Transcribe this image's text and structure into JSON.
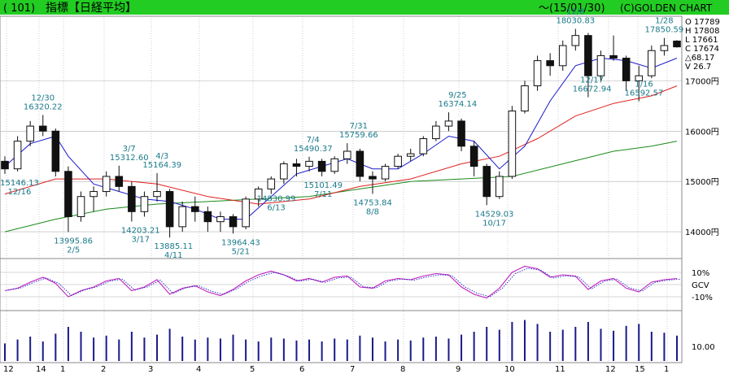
{
  "header": {
    "code": "( 101)",
    "name": "指標【日経平均】",
    "period": "～(15/01/30)",
    "brand": "(C)GOLDEN CHART"
  },
  "colors": {
    "header_bg": "#22cc22",
    "candle": "#111111",
    "ma_short": "#1a1acc",
    "ma_mid": "#e02020",
    "ma_long": "#1a8a1a",
    "ind_line": "#c020c0",
    "ind_dot": "#2020c0",
    "price_label": "#1a7a8a",
    "grid": "#b0b0b0",
    "volume": "#1a1a8a"
  },
  "ohlc_box": {
    "O": "O 17789",
    "H": "H 17808",
    "L": "L 17661",
    "C": "C 17674",
    "D": "△68.17",
    "V": "V 26.7"
  },
  "chart_data": {
    "type": "candlestick",
    "x_ticks": [
      "12",
      "14",
      "1",
      "2",
      "3",
      "4",
      "5",
      "6",
      "7",
      "8",
      "9",
      "10",
      "11",
      "12",
      "15",
      "1"
    ],
    "price_axis": {
      "ticks": [
        17000,
        16000,
        15000,
        14000
      ],
      "tick_labels": [
        "17000円",
        "16000円",
        "15000円",
        "14000円"
      ],
      "range": [
        13500,
        18250
      ]
    },
    "indicator_axis": {
      "tick_labels": [
        "10%",
        "GCV",
        "-10%"
      ],
      "range": [
        -20,
        20
      ]
    },
    "volume_axis": {
      "tick_labels": [
        "10.00"
      ]
    },
    "annotations": [
      {
        "date": "12/30",
        "value": "16320.22",
        "x": 3.0,
        "y": 16320
      },
      {
        "date": "12/16",
        "value": "15146.13",
        "x": 0.3,
        "y": 15146
      },
      {
        "date": "2/5",
        "value": "13995.86",
        "x": 5.4,
        "y": 13996
      },
      {
        "date": "3/7",
        "value": "15312.60",
        "x": 9.8,
        "y": 15313
      },
      {
        "date": "3/17",
        "value": "14203.21",
        "x": 10.7,
        "y": 14203
      },
      {
        "date": "4/3",
        "value": "15164.39",
        "x": 12.4,
        "y": 15164
      },
      {
        "date": "4/11",
        "value": "13885.11",
        "x": 13.3,
        "y": 13885
      },
      {
        "date": "5/21",
        "value": "13964.43",
        "x": 18.6,
        "y": 13964
      },
      {
        "date": "6/13",
        "value": "14830.99",
        "x": 21.4,
        "y": 14831
      },
      {
        "date": "7/4",
        "value": "15490.37",
        "x": 24.3,
        "y": 15490
      },
      {
        "date": "7/11",
        "value": "15101.49",
        "x": 25.1,
        "y": 15101
      },
      {
        "date": "7/31",
        "value": "15759.66",
        "x": 27.9,
        "y": 15760
      },
      {
        "date": "8/8",
        "value": "14753.84",
        "x": 29.0,
        "y": 14754
      },
      {
        "date": "9/25",
        "value": "16374.14",
        "x": 35.7,
        "y": 16374
      },
      {
        "date": "10/17",
        "value": "14529.03",
        "x": 38.6,
        "y": 14529
      },
      {
        "date": "12/8",
        "value": "18030.83",
        "x": 45.0,
        "y": 18031
      },
      {
        "date": "12/17",
        "value": "16672.94",
        "x": 46.3,
        "y": 16673
      },
      {
        "date": "1/16",
        "value": "16592.57",
        "x": 50.4,
        "y": 16593
      },
      {
        "date": "1/28",
        "value": "17850.59",
        "x": 52.0,
        "y": 17851
      }
    ],
    "candles_weekly_approx": [
      [
        0.0,
        15400,
        15500,
        15150,
        15250
      ],
      [
        1.0,
        15250,
        15900,
        15200,
        15800
      ],
      [
        2.0,
        15800,
        16200,
        15700,
        16100
      ],
      [
        3.0,
        16100,
        16320,
        15900,
        16000
      ],
      [
        4.0,
        16000,
        16050,
        15100,
        15200
      ],
      [
        5.0,
        15200,
        15300,
        13996,
        14300
      ],
      [
        6.0,
        14300,
        14800,
        14200,
        14700
      ],
      [
        7.0,
        14700,
        14900,
        14400,
        14800
      ],
      [
        8.0,
        14800,
        15200,
        14700,
        15100
      ],
      [
        9.0,
        15100,
        15313,
        14800,
        14900
      ],
      [
        10.0,
        14900,
        15000,
        14203,
        14400
      ],
      [
        11.0,
        14400,
        14800,
        14300,
        14700
      ],
      [
        12.0,
        14700,
        15164,
        14600,
        14800
      ],
      [
        13.0,
        14800,
        14850,
        13885,
        14100
      ],
      [
        14.0,
        14100,
        14600,
        14000,
        14500
      ],
      [
        15.0,
        14500,
        14700,
        14200,
        14400
      ],
      [
        16.0,
        14400,
        14500,
        14000,
        14200
      ],
      [
        17.0,
        14200,
        14400,
        14000,
        14300
      ],
      [
        18.0,
        14300,
        14350,
        13964,
        14100
      ],
      [
        19.0,
        14100,
        14700,
        14050,
        14650
      ],
      [
        20.0,
        14650,
        14900,
        14500,
        14850
      ],
      [
        21.0,
        14850,
        15100,
        14750,
        15050
      ],
      [
        22.0,
        15050,
        15400,
        14950,
        15350
      ],
      [
        23.0,
        15350,
        15450,
        15100,
        15300
      ],
      [
        24.0,
        15300,
        15490,
        15200,
        15400
      ],
      [
        25.0,
        15400,
        15450,
        15101,
        15200
      ],
      [
        26.0,
        15200,
        15500,
        15150,
        15450
      ],
      [
        27.0,
        15450,
        15760,
        15350,
        15600
      ],
      [
        28.0,
        15600,
        15650,
        15000,
        15100
      ],
      [
        29.0,
        15100,
        15200,
        14754,
        15050
      ],
      [
        30.0,
        15050,
        15350,
        15000,
        15300
      ],
      [
        31.0,
        15300,
        15550,
        15250,
        15500
      ],
      [
        32.0,
        15500,
        15650,
        15400,
        15550
      ],
      [
        33.0,
        15550,
        15900,
        15500,
        15850
      ],
      [
        34.0,
        15850,
        16200,
        15800,
        16100
      ],
      [
        35.0,
        16100,
        16374,
        16000,
        16200
      ],
      [
        36.0,
        16200,
        16250,
        15600,
        15700
      ],
      [
        37.0,
        15700,
        15800,
        15100,
        15300
      ],
      [
        38.0,
        15300,
        15350,
        14529,
        14700
      ],
      [
        39.0,
        14700,
        15200,
        14650,
        15100
      ],
      [
        40.0,
        15100,
        16500,
        15050,
        16400
      ],
      [
        41.0,
        16400,
        17000,
        16350,
        16900
      ],
      [
        42.0,
        16900,
        17500,
        16800,
        17400
      ],
      [
        43.0,
        17400,
        17550,
        17100,
        17300
      ],
      [
        44.0,
        17300,
        17800,
        17200,
        17700
      ],
      [
        45.0,
        17700,
        18031,
        17600,
        17900
      ],
      [
        46.0,
        17900,
        17950,
        16673,
        17100
      ],
      [
        47.0,
        17100,
        17600,
        17000,
        17500
      ],
      [
        48.0,
        17500,
        17900,
        17400,
        17450
      ],
      [
        49.0,
        17450,
        17500,
        16800,
        17000
      ],
      [
        50.0,
        17000,
        17300,
        16593,
        17100
      ],
      [
        51.0,
        17100,
        17700,
        17050,
        17600
      ],
      [
        52.0,
        17600,
        17851,
        17500,
        17700
      ],
      [
        53.0,
        17789,
        17808,
        17661,
        17674
      ]
    ],
    "ma_short": [
      [
        0,
        15300
      ],
      [
        2,
        15750
      ],
      [
        4,
        15900
      ],
      [
        5,
        15500
      ],
      [
        7,
        14950
      ],
      [
        9,
        14800
      ],
      [
        11,
        14650
      ],
      [
        13,
        14600
      ],
      [
        15,
        14450
      ],
      [
        17,
        14250
      ],
      [
        19,
        14250
      ],
      [
        21,
        14700
      ],
      [
        23,
        15150
      ],
      [
        25,
        15300
      ],
      [
        27,
        15450
      ],
      [
        29,
        15250
      ],
      [
        31,
        15250
      ],
      [
        33,
        15550
      ],
      [
        35,
        15900
      ],
      [
        37,
        15800
      ],
      [
        39,
        15250
      ],
      [
        41,
        15700
      ],
      [
        43,
        16600
      ],
      [
        45,
        17300
      ],
      [
        47,
        17450
      ],
      [
        49,
        17400
      ],
      [
        51,
        17250
      ],
      [
        53,
        17450
      ]
    ],
    "ma_mid": [
      [
        0,
        14750
      ],
      [
        4,
        15050
      ],
      [
        8,
        15050
      ],
      [
        12,
        14950
      ],
      [
        16,
        14700
      ],
      [
        20,
        14550
      ],
      [
        24,
        14650
      ],
      [
        28,
        14900
      ],
      [
        32,
        15050
      ],
      [
        36,
        15350
      ],
      [
        39,
        15500
      ],
      [
        42,
        15850
      ],
      [
        45,
        16300
      ],
      [
        48,
        16550
      ],
      [
        51,
        16700
      ],
      [
        53,
        16900
      ]
    ],
    "ma_long": [
      [
        0,
        14000
      ],
      [
        4,
        14250
      ],
      [
        8,
        14450
      ],
      [
        12,
        14550
      ],
      [
        16,
        14600
      ],
      [
        20,
        14650
      ],
      [
        24,
        14700
      ],
      [
        28,
        14850
      ],
      [
        32,
        15000
      ],
      [
        36,
        15050
      ],
      [
        40,
        15100
      ],
      [
        44,
        15350
      ],
      [
        48,
        15600
      ],
      [
        51,
        15700
      ],
      [
        53,
        15800
      ]
    ],
    "indicator": [
      [
        0,
        -5
      ],
      [
        1,
        -3
      ],
      [
        2,
        2
      ],
      [
        3,
        6
      ],
      [
        4,
        1
      ],
      [
        5,
        -10
      ],
      [
        6,
        -5
      ],
      [
        7,
        -2
      ],
      [
        8,
        3
      ],
      [
        9,
        5
      ],
      [
        10,
        -5
      ],
      [
        11,
        -2
      ],
      [
        12,
        4
      ],
      [
        13,
        -8
      ],
      [
        14,
        -3
      ],
      [
        15,
        -1
      ],
      [
        16,
        -6
      ],
      [
        17,
        -9
      ],
      [
        18,
        -4
      ],
      [
        19,
        3
      ],
      [
        20,
        8
      ],
      [
        21,
        11
      ],
      [
        22,
        8
      ],
      [
        23,
        3
      ],
      [
        24,
        5
      ],
      [
        25,
        2
      ],
      [
        26,
        6
      ],
      [
        27,
        7
      ],
      [
        28,
        -2
      ],
      [
        29,
        -3
      ],
      [
        30,
        3
      ],
      [
        31,
        5
      ],
      [
        32,
        4
      ],
      [
        33,
        7
      ],
      [
        34,
        9
      ],
      [
        35,
        8
      ],
      [
        36,
        -2
      ],
      [
        37,
        -8
      ],
      [
        38,
        -11
      ],
      [
        39,
        -3
      ],
      [
        40,
        10
      ],
      [
        41,
        15
      ],
      [
        42,
        13
      ],
      [
        43,
        6
      ],
      [
        44,
        8
      ],
      [
        45,
        7
      ],
      [
        46,
        -4
      ],
      [
        47,
        3
      ],
      [
        48,
        5
      ],
      [
        49,
        -3
      ],
      [
        50,
        -6
      ],
      [
        51,
        2
      ],
      [
        52,
        4
      ],
      [
        53,
        5
      ]
    ],
    "volume": [
      18,
      22,
      25,
      20,
      28,
      35,
      30,
      24,
      26,
      22,
      30,
      24,
      27,
      33,
      25,
      22,
      24,
      23,
      27,
      22,
      20,
      24,
      23,
      21,
      22,
      20,
      23,
      22,
      26,
      24,
      20,
      22,
      21,
      24,
      25,
      23,
      27,
      30,
      35,
      32,
      40,
      42,
      38,
      30,
      32,
      35,
      40,
      33,
      31,
      36,
      38,
      30,
      29,
      26
    ]
  }
}
